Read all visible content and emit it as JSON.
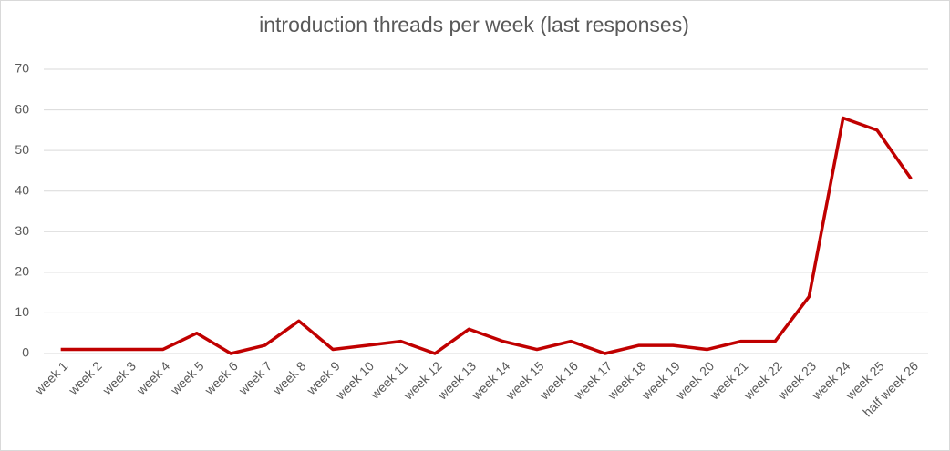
{
  "chart_data": {
    "type": "line",
    "title": "introduction threads per week (last responses)",
    "categories": [
      "week 1",
      "week 2",
      "week 3",
      "week 4",
      "week 5",
      "week 6",
      "week 7",
      "week 8",
      "week 9",
      "week 10",
      "week 11",
      "week 12",
      "week 13",
      "week 14",
      "week 15",
      "week 16",
      "week 17",
      "week 18",
      "week 19",
      "week 20",
      "week 21",
      "week 22",
      "week 23",
      "week 24",
      "week 25",
      "half week 26"
    ],
    "series": [
      {
        "name": "introduction threads",
        "color": "#c00000",
        "values": [
          1,
          1,
          1,
          1,
          5,
          0,
          2,
          8,
          1,
          2,
          3,
          0,
          6,
          3,
          1,
          3,
          0,
          2,
          2,
          1,
          3,
          3,
          14,
          58,
          55,
          43
        ]
      }
    ],
    "ylim": [
      0,
      70
    ],
    "yticks": [
      0,
      10,
      20,
      30,
      40,
      50,
      60,
      70
    ],
    "grid": true
  }
}
